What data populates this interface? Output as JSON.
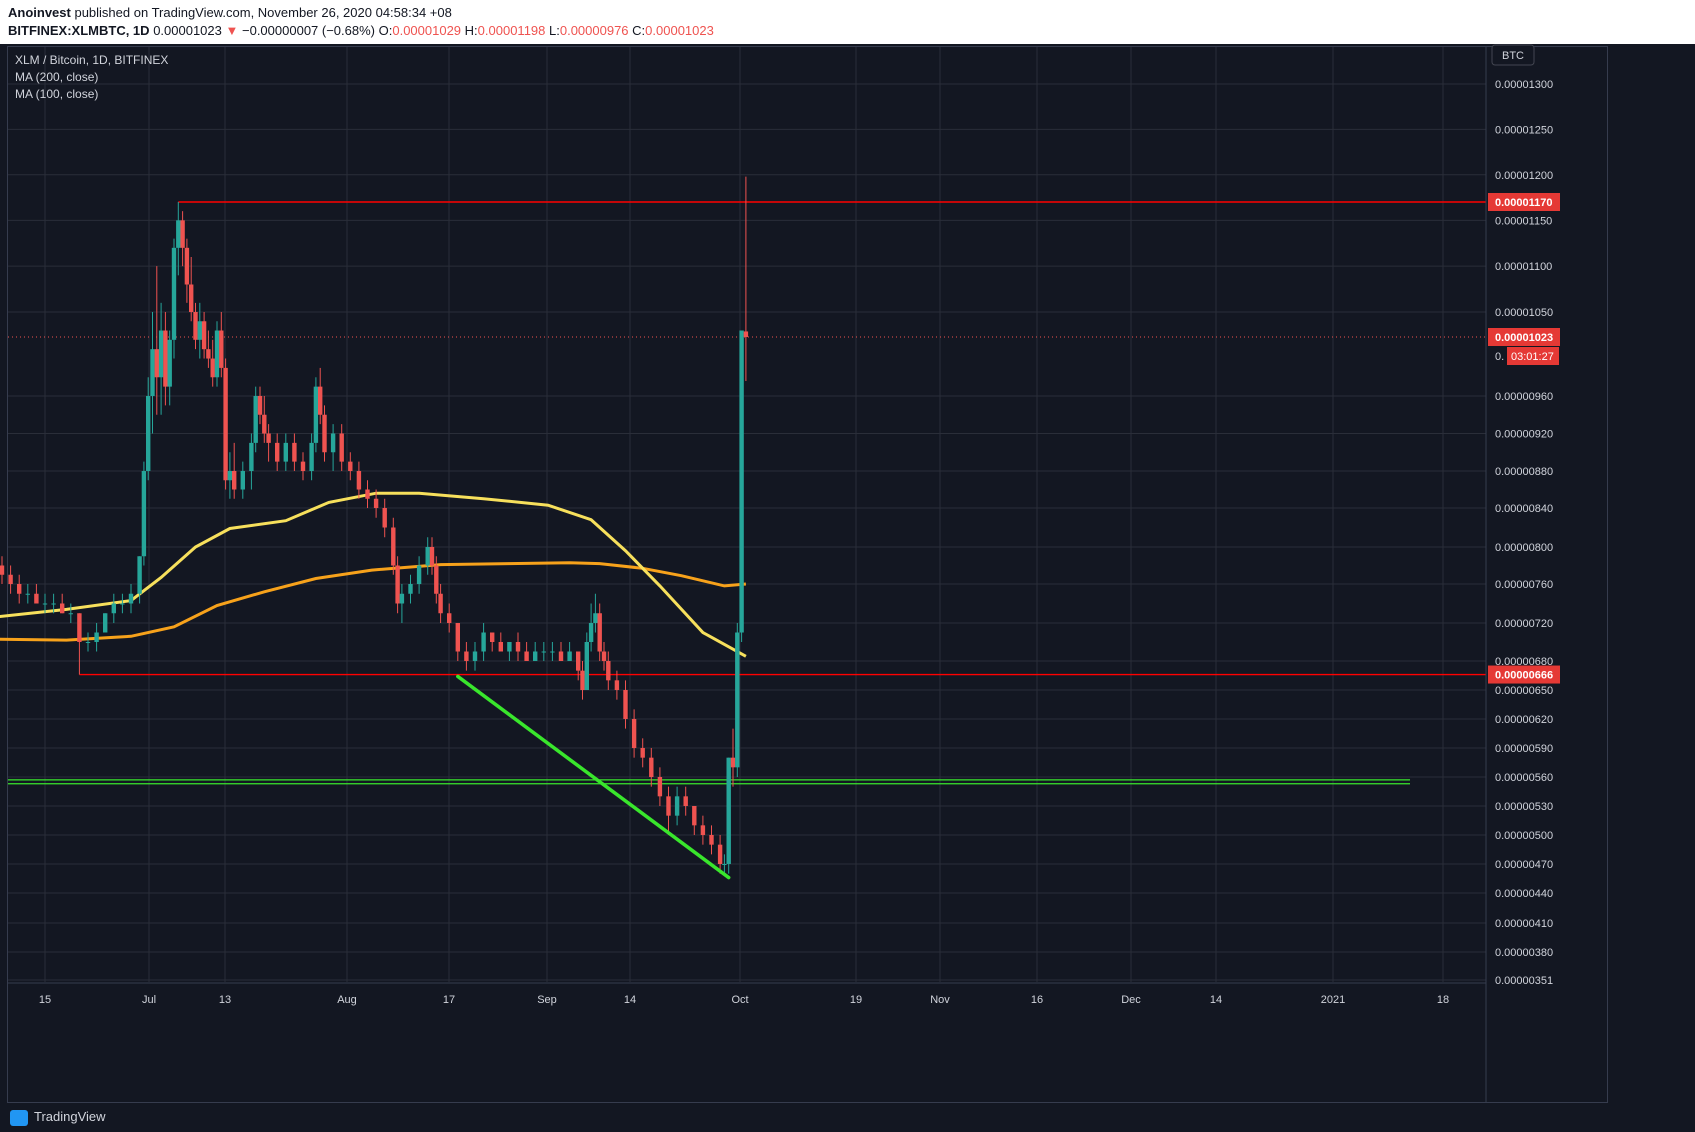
{
  "header": {
    "author": "Anoinvest",
    "published_text": "published on TradingView.com, November 26, 2020 04:58:34 +08",
    "symbol_line": "BITFINEX:XLMBTC, 1D",
    "last_price": "0.00001023",
    "change_arrow": "▼",
    "change": "−0.00000007 (−0.68%)",
    "o_label": "O:",
    "o_value": "0.00001029",
    "h_label": "H:",
    "h_value": "0.00001198",
    "l_label": "L:",
    "l_value": "0.00000976",
    "c_label": "C:",
    "c_value": "0.00001023"
  },
  "legend": {
    "title": "XLM / Bitcoin, 1D, BITFINEX",
    "ma1": "MA (200, close)",
    "ma2": "MA (100, close)"
  },
  "currency_badge": "BTC",
  "footer": {
    "brand": "TradingView"
  },
  "colors": {
    "background": "#131722",
    "grid": "#2a2e39",
    "up": "#26a69a",
    "down": "#ef5350",
    "ma200": "#f7e05c",
    "ma100": "#f7a21b",
    "resistance": "#ff0000",
    "trendline": "#39e62c"
  },
  "chart_data": {
    "type": "candlestick",
    "title": "XLM / Bitcoin, 1D, BITFINEX",
    "y_ticks": [
      "0.00001300",
      "0.00001250",
      "0.00001200",
      "0.00001150",
      "0.00001100",
      "0.00001050",
      "0.00000960",
      "0.00000920",
      "0.00000880",
      "0.00000840",
      "0.00000800",
      "0.00000760",
      "0.00000720",
      "0.00000680",
      "0.00000650",
      "0.00000620",
      "0.00000590",
      "0.00000560",
      "0.00000530",
      "0.00000500",
      "0.00000470",
      "0.00000440",
      "0.00000410",
      "0.00000380",
      "0.00000351"
    ],
    "x_ticks": [
      "15",
      "Jul",
      "13",
      "Aug",
      "17",
      "Sep",
      "14",
      "Oct",
      "19",
      "Nov",
      "16",
      "Dec",
      "14",
      "2021",
      "18"
    ],
    "price_labels": [
      {
        "label": "0.00001170",
        "value": 1.17e-05
      },
      {
        "label": "0.00001023",
        "value": 1.023e-05
      },
      {
        "label": "0.00000666",
        "value": 6.66e-06
      }
    ],
    "countdown_prefix": "0.",
    "countdown": "03:01:27",
    "horizontal_lines": [
      {
        "name": "resistance-1170",
        "value": 1.17e-05,
        "start": "2020-07-16"
      },
      {
        "name": "support-666",
        "value": 6.66e-06,
        "start": "2020-06-23"
      }
    ],
    "green_zone": [
      5.53e-06,
      5.57e-06
    ],
    "trendline": {
      "from": [
        "2020-09-19",
        6.64e-06
      ],
      "to": [
        "2020-11-21",
        4.56e-06
      ]
    },
    "ma200": [
      [
        "2020-06-01",
        7.03e-06
      ],
      [
        "2020-06-20",
        7.02e-06
      ],
      [
        "2020-07-05",
        7.06e-06
      ],
      [
        "2020-07-15",
        7.16e-06
      ],
      [
        "2020-07-25",
        7.38e-06
      ],
      [
        "2020-08-05",
        7.52e-06
      ],
      [
        "2020-08-17",
        7.66e-06
      ],
      [
        "2020-08-30",
        7.75e-06
      ],
      [
        "2020-09-15",
        7.81e-06
      ],
      [
        "2020-10-01",
        7.82e-06
      ],
      [
        "2020-10-15",
        7.83e-06
      ],
      [
        "2020-10-22",
        7.82e-06
      ],
      [
        "2020-11-01",
        7.77e-06
      ],
      [
        "2020-11-10",
        7.69e-06
      ],
      [
        "2020-11-20",
        7.58e-06
      ],
      [
        "2020-11-25",
        7.6e-06
      ]
    ],
    "ma100": [
      [
        "2020-06-01",
        7.25e-06
      ],
      [
        "2020-06-20",
        7.34e-06
      ],
      [
        "2020-07-05",
        7.43e-06
      ],
      [
        "2020-07-12",
        7.67e-06
      ],
      [
        "2020-07-20",
        8e-06
      ],
      [
        "2020-07-28",
        8.19e-06
      ],
      [
        "2020-08-10",
        8.27e-06
      ],
      [
        "2020-08-20",
        8.46e-06
      ],
      [
        "2020-08-31",
        8.56e-06
      ],
      [
        "2020-09-10",
        8.56e-06
      ],
      [
        "2020-09-25",
        8.5e-06
      ],
      [
        "2020-10-10",
        8.43e-06
      ],
      [
        "2020-10-20",
        8.28e-06
      ],
      [
        "2020-10-28",
        7.96e-06
      ],
      [
        "2020-11-05",
        7.58e-06
      ],
      [
        "2020-11-15",
        7.1e-06
      ],
      [
        "2020-11-25",
        6.85e-06
      ]
    ],
    "candles": [
      [
        "2020-06-01",
        8.2e-06,
        8.3e-06,
        8e-06,
        8.1e-06
      ],
      [
        "2020-06-03",
        8.1e-06,
        8.1e-06,
        7.7e-06,
        7.8e-06
      ],
      [
        "2020-06-05",
        7.8e-06,
        7.9e-06,
        7.6e-06,
        7.7e-06
      ],
      [
        "2020-06-07",
        7.7e-06,
        7.8e-06,
        7.5e-06,
        7.6e-06
      ],
      [
        "2020-06-09",
        7.6e-06,
        7.7e-06,
        7.4e-06,
        7.5e-06
      ],
      [
        "2020-06-11",
        7.5e-06,
        7.6e-06,
        7.4e-06,
        7.5e-06
      ],
      [
        "2020-06-13",
        7.5e-06,
        7.6e-06,
        7.4e-06,
        7.4e-06
      ],
      [
        "2020-06-15",
        7.4e-06,
        7.5e-06,
        7.3e-06,
        7.4e-06
      ],
      [
        "2020-06-17",
        7.4e-06,
        7.5e-06,
        7.3e-06,
        7.4e-06
      ],
      [
        "2020-06-19",
        7.4e-06,
        7.5e-06,
        7.3e-06,
        7.3e-06
      ],
      [
        "2020-06-21",
        7.3e-06,
        7.4e-06,
        7.2e-06,
        7.3e-06
      ],
      [
        "2020-06-23",
        7.3e-06,
        7.3e-06,
        6.66e-06,
        7e-06
      ],
      [
        "2020-06-25",
        7e-06,
        7.1e-06,
        6.9e-06,
        7e-06
      ],
      [
        "2020-06-27",
        7e-06,
        7.2e-06,
        6.9e-06,
        7.1e-06
      ],
      [
        "2020-06-29",
        7.1e-06,
        7.3e-06,
        7.1e-06,
        7.3e-06
      ],
      [
        "2020-07-01",
        7.3e-06,
        7.5e-06,
        7.2e-06,
        7.4e-06
      ],
      [
        "2020-07-03",
        7.4e-06,
        7.5e-06,
        7.3e-06,
        7.4e-06
      ],
      [
        "2020-07-05",
        7.4e-06,
        7.6e-06,
        7.3e-06,
        7.5e-06
      ],
      [
        "2020-07-07",
        7.5e-06,
        7.9e-06,
        7.4e-06,
        7.9e-06
      ],
      [
        "2020-07-08",
        7.9e-06,
        8.9e-06,
        7.8e-06,
        8.8e-06
      ],
      [
        "2020-07-09",
        8.8e-06,
        9.8e-06,
        8.7e-06,
        9.6e-06
      ],
      [
        "2020-07-10",
        9.6e-06,
        1.05e-05,
        9.2e-06,
        1.01e-05
      ],
      [
        "2020-07-11",
        1.01e-05,
        1.1e-05,
        9.4e-06,
        9.8e-06
      ],
      [
        "2020-07-12",
        9.8e-06,
        1.06e-05,
        9.4e-06,
        1.03e-05
      ],
      [
        "2020-07-13",
        1.03e-05,
        1.05e-05,
        9.5e-06,
        9.7e-06
      ],
      [
        "2020-07-14",
        9.7e-06,
        1.03e-05,
        9.5e-06,
        1.02e-05
      ],
      [
        "2020-07-15",
        1.02e-05,
        1.13e-05,
        1e-05,
        1.12e-05
      ],
      [
        "2020-07-16",
        1.12e-05,
        1.17e-05,
        1.09e-05,
        1.15e-05
      ],
      [
        "2020-07-17",
        1.15e-05,
        1.16e-05,
        1.1e-05,
        1.12e-05
      ],
      [
        "2020-07-18",
        1.12e-05,
        1.13e-05,
        1.06e-05,
        1.08e-05
      ],
      [
        "2020-07-19",
        1.08e-05,
        1.11e-05,
        1.04e-05,
        1.05e-05
      ],
      [
        "2020-07-20",
        1.05e-05,
        1.06e-05,
        1.01e-05,
        1.02e-05
      ],
      [
        "2020-07-21",
        1.02e-05,
        1.06e-05,
        1e-05,
        1.04e-05
      ],
      [
        "2020-07-22",
        1.04e-05,
        1.05e-05,
        1e-05,
        1.01e-05
      ],
      [
        "2020-07-23",
        1.01e-05,
        1.03e-05,
        9.9e-06,
        1e-05
      ],
      [
        "2020-07-24",
        1e-05,
        1.02e-05,
        9.7e-06,
        9.8e-06
      ],
      [
        "2020-07-25",
        9.8e-06,
        1.04e-05,
        9.7e-06,
        1.03e-05
      ],
      [
        "2020-07-26",
        1.03e-05,
        1.05e-05,
        9.8e-06,
        9.9e-06
      ],
      [
        "2020-07-27",
        9.9e-06,
        1e-05,
        8.6e-06,
        8.7e-06
      ],
      [
        "2020-07-28",
        8.7e-06,
        9e-06,
        8.5e-06,
        8.8e-06
      ],
      [
        "2020-07-29",
        8.8e-06,
        9.1e-06,
        8.5e-06,
        8.6e-06
      ],
      [
        "2020-07-31",
        8.6e-06,
        8.9e-06,
        8.5e-06,
        8.8e-06
      ],
      [
        "2020-08-02",
        8.8e-06,
        9.2e-06,
        8.6e-06,
        9.1e-06
      ],
      [
        "2020-08-03",
        9.1e-06,
        9.7e-06,
        9e-06,
        9.6e-06
      ],
      [
        "2020-08-04",
        9.6e-06,
        9.7e-06,
        9.3e-06,
        9.4e-06
      ],
      [
        "2020-08-05",
        9.4e-06,
        9.6e-06,
        9.1e-06,
        9.2e-06
      ],
      [
        "2020-08-06",
        9.2e-06,
        9.3e-06,
        8.9e-06,
        9.1e-06
      ],
      [
        "2020-08-08",
        9.1e-06,
        9.2e-06,
        8.8e-06,
        8.9e-06
      ],
      [
        "2020-08-10",
        8.9e-06,
        9.2e-06,
        8.8e-06,
        9.1e-06
      ],
      [
        "2020-08-12",
        9.1e-06,
        9.2e-06,
        8.8e-06,
        8.9e-06
      ],
      [
        "2020-08-14",
        8.9e-06,
        9e-06,
        8.7e-06,
        8.8e-06
      ],
      [
        "2020-08-16",
        8.8e-06,
        9.2e-06,
        8.7e-06,
        9.1e-06
      ],
      [
        "2020-08-17",
        9.1e-06,
        9.8e-06,
        9e-06,
        9.7e-06
      ],
      [
        "2020-08-18",
        9.7e-06,
        9.9e-06,
        9.3e-06,
        9.4e-06
      ],
      [
        "2020-08-19",
        9.4e-06,
        9.5e-06,
        8.9e-06,
        9e-06
      ],
      [
        "2020-08-21",
        9e-06,
        9.3e-06,
        8.8e-06,
        9.2e-06
      ],
      [
        "2020-08-23",
        9.2e-06,
        9.3e-06,
        8.8e-06,
        8.9e-06
      ],
      [
        "2020-08-25",
        8.9e-06,
        9e-06,
        8.7e-06,
        8.8e-06
      ],
      [
        "2020-08-27",
        8.8e-06,
        8.9e-06,
        8.5e-06,
        8.6e-06
      ],
      [
        "2020-08-29",
        8.6e-06,
        8.7e-06,
        8.4e-06,
        8.5e-06
      ],
      [
        "2020-08-31",
        8.5e-06,
        8.6e-06,
        8.3e-06,
        8.4e-06
      ],
      [
        "2020-09-02",
        8.4e-06,
        8.5e-06,
        8.1e-06,
        8.2e-06
      ],
      [
        "2020-09-04",
        8.2e-06,
        8.3e-06,
        7.7e-06,
        7.8e-06
      ],
      [
        "2020-09-05",
        7.8e-06,
        7.9e-06,
        7.3e-06,
        7.4e-06
      ],
      [
        "2020-09-06",
        7.4e-06,
        7.6e-06,
        7.2e-06,
        7.5e-06
      ],
      [
        "2020-09-08",
        7.5e-06,
        7.7e-06,
        7.4e-06,
        7.6e-06
      ],
      [
        "2020-09-10",
        7.6e-06,
        7.9e-06,
        7.5e-06,
        7.8e-06
      ],
      [
        "2020-09-12",
        7.8e-06,
        8.1e-06,
        7.7e-06,
        8e-06
      ],
      [
        "2020-09-13",
        8e-06,
        8.1e-06,
        7.7e-06,
        7.8e-06
      ],
      [
        "2020-09-14",
        7.8e-06,
        7.9e-06,
        7.4e-06,
        7.5e-06
      ],
      [
        "2020-09-15",
        7.5e-06,
        7.6e-06,
        7.2e-06,
        7.3e-06
      ],
      [
        "2020-09-17",
        7.3e-06,
        7.4e-06,
        7.1e-06,
        7.2e-06
      ],
      [
        "2020-09-19",
        7.2e-06,
        7.2e-06,
        6.8e-06,
        6.9e-06
      ],
      [
        "2020-09-21",
        6.9e-06,
        7e-06,
        6.7e-06,
        6.8e-06
      ],
      [
        "2020-09-23",
        6.8e-06,
        7e-06,
        6.7e-06,
        6.9e-06
      ],
      [
        "2020-09-25",
        6.9e-06,
        7.2e-06,
        6.8e-06,
        7.1e-06
      ],
      [
        "2020-09-27",
        7.1e-06,
        7.1e-06,
        6.9e-06,
        7e-06
      ],
      [
        "2020-09-29",
        7e-06,
        7.1e-06,
        6.9e-06,
        6.9e-06
      ],
      [
        "2020-10-01",
        6.9e-06,
        7e-06,
        6.8e-06,
        7e-06
      ],
      [
        "2020-10-03",
        7e-06,
        7.1e-06,
        6.8e-06,
        6.9e-06
      ],
      [
        "2020-10-05",
        6.9e-06,
        7e-06,
        6.8e-06,
        6.8e-06
      ],
      [
        "2020-10-07",
        6.8e-06,
        7e-06,
        6.8e-06,
        6.9e-06
      ],
      [
        "2020-10-09",
        6.9e-06,
        7e-06,
        6.8e-06,
        6.9e-06
      ],
      [
        "2020-10-11",
        6.9e-06,
        7e-06,
        6.8e-06,
        6.9e-06
      ],
      [
        "2020-10-13",
        6.9e-06,
        7e-06,
        6.8e-06,
        6.8e-06
      ],
      [
        "2020-10-15",
        6.8e-06,
        7e-06,
        6.8e-06,
        6.9e-06
      ],
      [
        "2020-10-17",
        6.9e-06,
        6.9e-06,
        6.6e-06,
        6.7e-06
      ],
      [
        "2020-10-18",
        6.7e-06,
        6.8e-06,
        6.4e-06,
        6.5e-06
      ],
      [
        "2020-10-19",
        6.5e-06,
        7.1e-06,
        6.5e-06,
        7e-06
      ],
      [
        "2020-10-20",
        7e-06,
        7.4e-06,
        6.9e-06,
        7.2e-06
      ],
      [
        "2020-10-21",
        7.2e-06,
        7.5e-06,
        7.1e-06,
        7.3e-06
      ],
      [
        "2020-10-22",
        7.3e-06,
        7.4e-06,
        6.8e-06,
        6.9e-06
      ],
      [
        "2020-10-23",
        6.9e-06,
        7e-06,
        6.7e-06,
        6.8e-06
      ],
      [
        "2020-10-24",
        6.8e-06,
        6.9e-06,
        6.5e-06,
        6.6e-06
      ],
      [
        "2020-10-26",
        6.6e-06,
        6.7e-06,
        6.4e-06,
        6.5e-06
      ],
      [
        "2020-10-28",
        6.5e-06,
        6.6e-06,
        6.1e-06,
        6.2e-06
      ],
      [
        "2020-10-30",
        6.2e-06,
        6.3e-06,
        5.8e-06,
        5.9e-06
      ],
      [
        "2020-11-01",
        5.9e-06,
        6e-06,
        5.7e-06,
        5.8e-06
      ],
      [
        "2020-11-03",
        5.8e-06,
        5.9e-06,
        5.5e-06,
        5.6e-06
      ],
      [
        "2020-11-05",
        5.6e-06,
        5.7e-06,
        5.3e-06,
        5.4e-06
      ],
      [
        "2020-11-07",
        5.4e-06,
        5.5e-06,
        5e-06,
        5.2e-06
      ],
      [
        "2020-11-09",
        5.2e-06,
        5.5e-06,
        5.1e-06,
        5.4e-06
      ],
      [
        "2020-11-11",
        5.4e-06,
        5.5e-06,
        5.2e-06,
        5.3e-06
      ],
      [
        "2020-11-13",
        5.3e-06,
        5.3e-06,
        5e-06,
        5.1e-06
      ],
      [
        "2020-11-15",
        5.1e-06,
        5.2e-06,
        4.9e-06,
        5e-06
      ],
      [
        "2020-11-17",
        5e-06,
        5.1e-06,
        4.8e-06,
        4.9e-06
      ],
      [
        "2020-11-19",
        4.9e-06,
        5e-06,
        4.6e-06,
        4.7e-06
      ],
      [
        "2020-11-20",
        4.7e-06,
        4.8e-06,
        4.6e-06,
        4.7e-06
      ],
      [
        "2020-11-21",
        4.7e-06,
        5.8e-06,
        4.6e-06,
        5.8e-06
      ],
      [
        "2020-11-22",
        5.8e-06,
        6.1e-06,
        5.5e-06,
        5.7e-06
      ],
      [
        "2020-11-23",
        5.7e-06,
        7.2e-06,
        5.6e-06,
        7.1e-06
      ],
      [
        "2020-11-24",
        7.1e-06,
        1.03e-05,
        7e-06,
        1.03e-05
      ],
      [
        "2020-11-25",
        1.029e-05,
        1.198e-05,
        9.76e-06,
        1.023e-05
      ]
    ]
  }
}
